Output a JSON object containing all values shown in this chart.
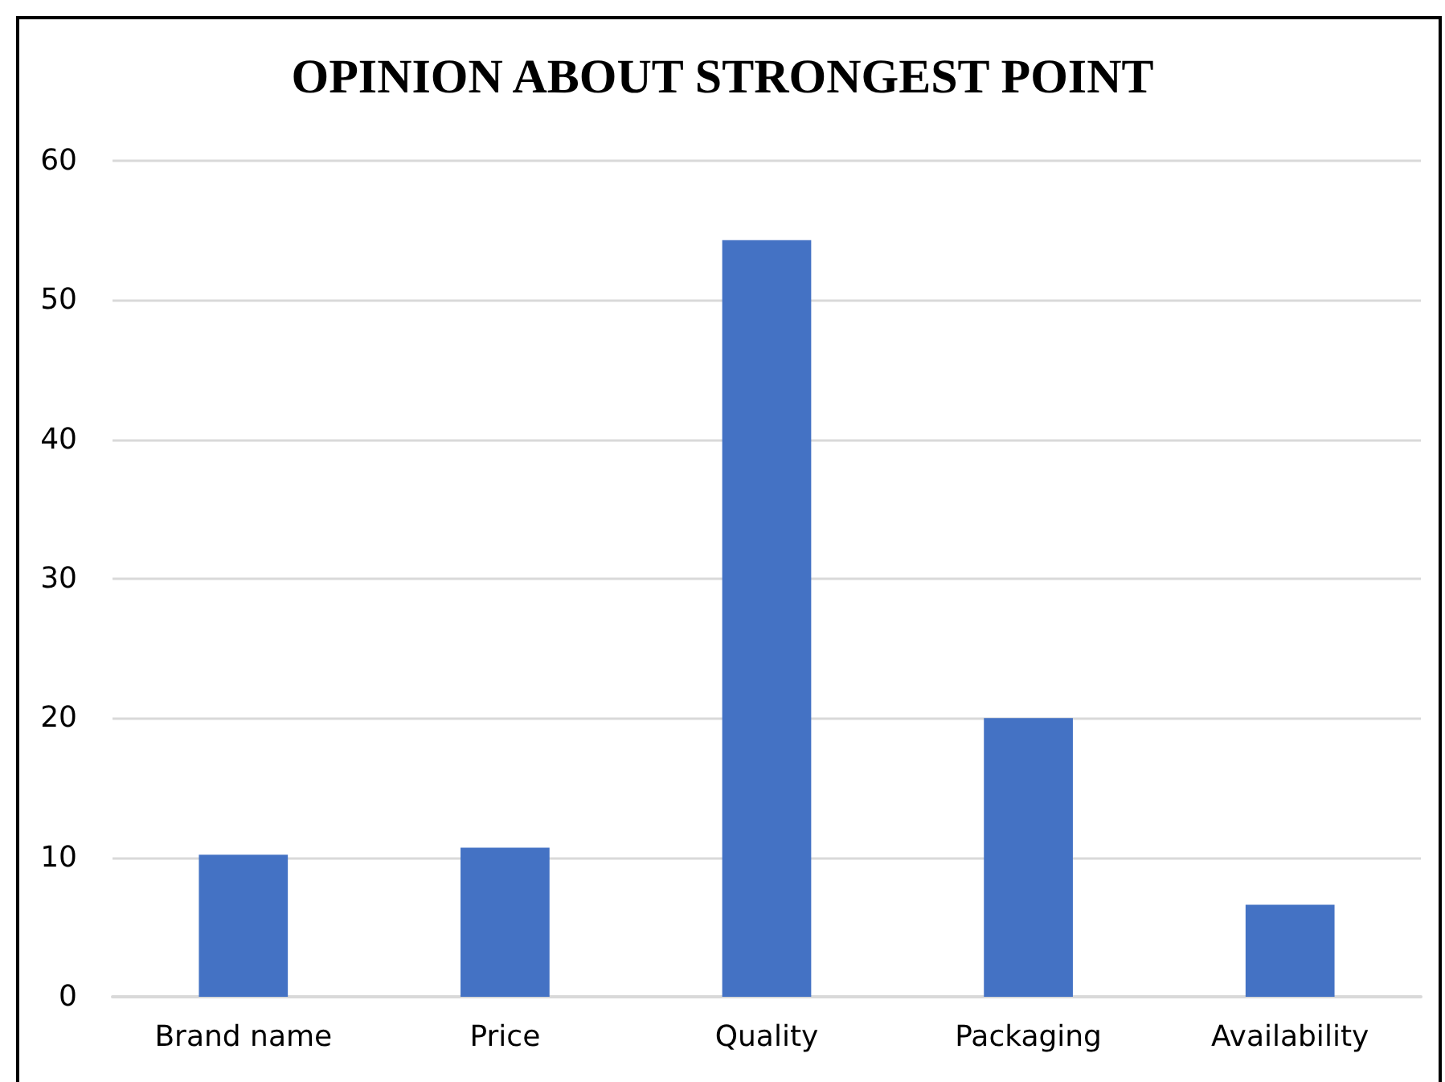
{
  "chart_data": {
    "type": "bar",
    "title": "OPINION ABOUT STRONGEST POINT",
    "categories": [
      "Brand name",
      "Price",
      "Quality",
      "Packaging",
      "Availability"
    ],
    "values": [
      10.2,
      10.7,
      54.3,
      20,
      6.6
    ],
    "color": "#4472c4",
    "ylim": [
      0,
      60
    ],
    "yticks": [
      0,
      10,
      20,
      30,
      40,
      50,
      60
    ],
    "grid": "y"
  }
}
